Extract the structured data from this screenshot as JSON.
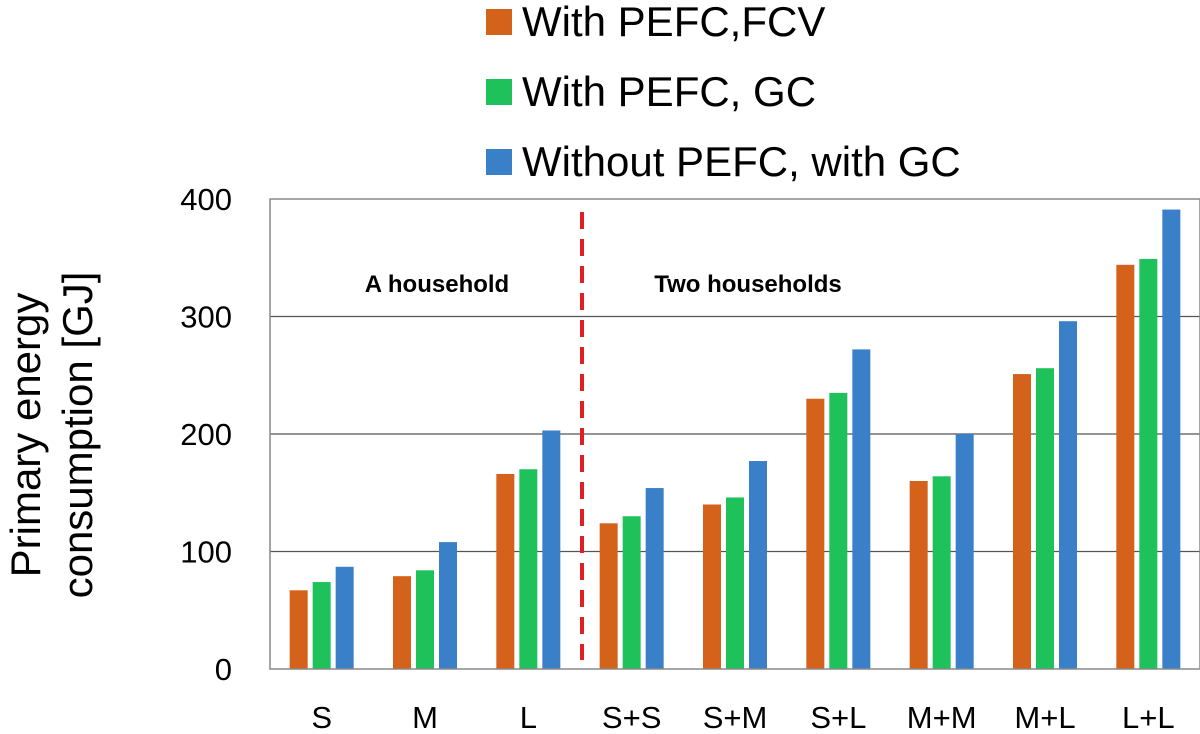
{
  "chart_data": {
    "type": "bar",
    "title": "",
    "xlabel": "",
    "ylabel_lines": [
      "Primary energy",
      "consumption [GJ]"
    ],
    "ylim": [
      0,
      400
    ],
    "yticks": [
      0,
      100,
      200,
      300,
      400
    ],
    "grid": "horizontal",
    "legend_position": "top",
    "categories": [
      "S",
      "M",
      "L",
      "S+S",
      "S+M",
      "S+L",
      "M+M",
      "M+L",
      "L+L"
    ],
    "series": [
      {
        "name": "With PEFC,FCV",
        "color": "#d4621a",
        "values": [
          67,
          79,
          166,
          124,
          140,
          230,
          160,
          251,
          344
        ]
      },
      {
        "name": "With PEFC, GC",
        "color": "#1fc25a",
        "values": [
          74,
          84,
          170,
          130,
          146,
          235,
          164,
          256,
          349
        ]
      },
      {
        "name": "Without PEFC, with GC",
        "color": "#3a80c8",
        "values": [
          87,
          108,
          203,
          154,
          177,
          272,
          200,
          296,
          391
        ]
      }
    ],
    "annotations": [
      {
        "text": "A household"
      },
      {
        "text": "Two households"
      }
    ],
    "divider": {
      "after_category_index": 2,
      "style": "dashed",
      "color": "#e02020"
    }
  }
}
